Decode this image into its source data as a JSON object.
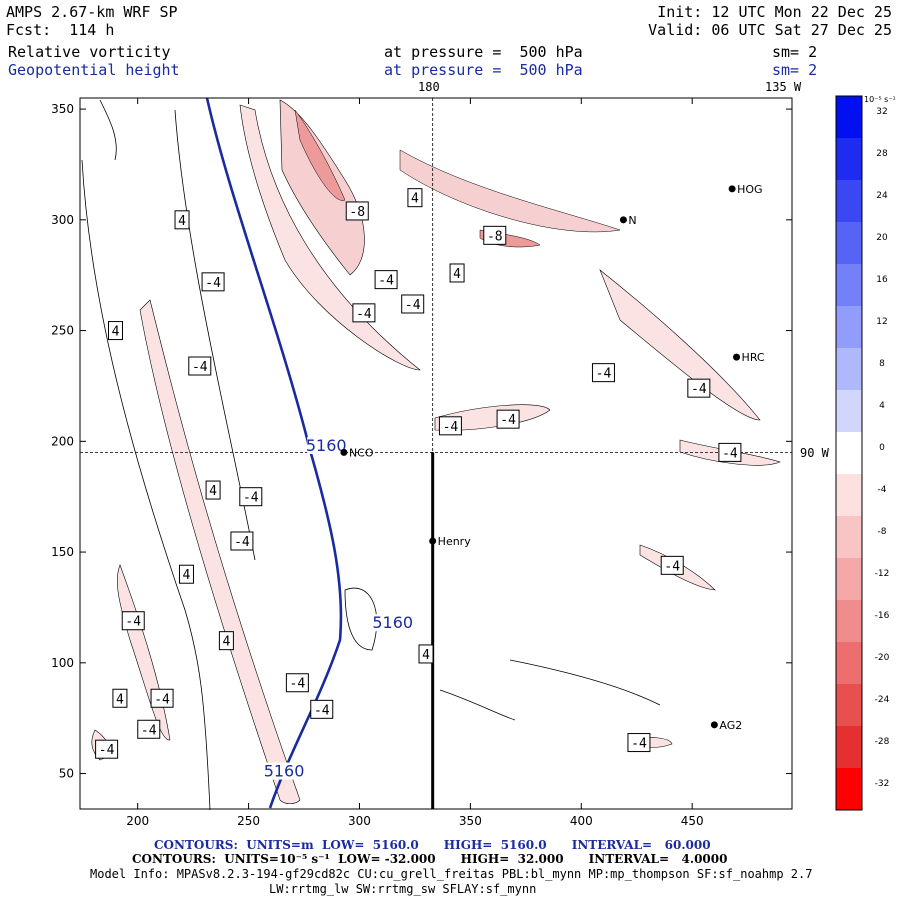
{
  "header": {
    "model_title": "AMPS 2.67-km WRF SP",
    "forecast": "Fcst:  114 h",
    "init": "Init: 12 UTC Mon 22 Dec 25",
    "valid": "Valid: 06 UTC Sat 27 Dec 25",
    "field1": "Relative vorticity",
    "field1_level": "at pressure =  500 hPa",
    "field1_sm": "sm= 2",
    "field2": "Geopotential height",
    "field2_level": "at pressure =  500 hPa",
    "field2_sm": "sm= 2"
  },
  "colors": {
    "height_contour": "#1a2aa0",
    "vorticity_fill_neg": "#f4c8c8",
    "vorticity_fill_neg_strong": "#ec9a9a"
  },
  "map": {
    "lon_labels": [
      "180",
      "135 W",
      "90 W"
    ],
    "stations": [
      {
        "name": "HOG",
        "x": 468,
        "y": 314
      },
      {
        "name": "N",
        "x": 419,
        "y": 300
      },
      {
        "name": "HRC",
        "x": 470,
        "y": 238
      },
      {
        "name": "NCO",
        "x": 293,
        "y": 195
      },
      {
        "name": "Henry",
        "x": 333,
        "y": 155
      },
      {
        "name": "AG2",
        "x": 460,
        "y": 72
      }
    ]
  },
  "chart_data": {
    "type": "contour",
    "title": "Relative vorticity / Geopotential height at 500 hPa",
    "x_ticks": [
      200,
      250,
      300,
      350,
      400,
      450
    ],
    "y_ticks": [
      50,
      100,
      150,
      200,
      250,
      300,
      350
    ],
    "xlim": [
      174,
      495
    ],
    "ylim": [
      34,
      355
    ],
    "crosshair": {
      "x": 333,
      "y": 195
    },
    "height_contour_labels": [
      {
        "text": "5160",
        "x": 285,
        "y": 197
      },
      {
        "text": "5160",
        "x": 315,
        "y": 117
      },
      {
        "text": "5160",
        "x": 266,
        "y": 50
      }
    ],
    "vorticity_labels": [
      {
        "text": "4",
        "x": 220,
        "y": 300
      },
      {
        "text": "-4",
        "x": 234,
        "y": 272
      },
      {
        "text": "4",
        "x": 190,
        "y": 250
      },
      {
        "text": "-4",
        "x": 228,
        "y": 234
      },
      {
        "text": "4",
        "x": 234,
        "y": 178
      },
      {
        "text": "-4",
        "x": 251,
        "y": 175
      },
      {
        "text": "-4",
        "x": 247,
        "y": 155
      },
      {
        "text": "4",
        "x": 222,
        "y": 140
      },
      {
        "text": "-4",
        "x": 198,
        "y": 119
      },
      {
        "text": "4",
        "x": 240,
        "y": 110
      },
      {
        "text": "-4",
        "x": 211,
        "y": 84
      },
      {
        "text": "4",
        "x": 192,
        "y": 84
      },
      {
        "text": "-4",
        "x": 205,
        "y": 70
      },
      {
        "text": "-4",
        "x": 186,
        "y": 61
      },
      {
        "text": "-4",
        "x": 272,
        "y": 91
      },
      {
        "text": "-4",
        "x": 283,
        "y": 79
      },
      {
        "text": "4",
        "x": 330,
        "y": 104
      },
      {
        "text": "-8",
        "x": 299,
        "y": 304
      },
      {
        "text": "4",
        "x": 325,
        "y": 310
      },
      {
        "text": "-4",
        "x": 312,
        "y": 273
      },
      {
        "text": "-4",
        "x": 302,
        "y": 258
      },
      {
        "text": "-4",
        "x": 324,
        "y": 262
      },
      {
        "text": "4",
        "x": 344,
        "y": 276
      },
      {
        "text": "-8",
        "x": 361,
        "y": 293
      },
      {
        "text": "-4",
        "x": 341,
        "y": 207
      },
      {
        "text": "-4",
        "x": 367,
        "y": 210
      },
      {
        "text": "-4",
        "x": 410,
        "y": 231
      },
      {
        "text": "-4",
        "x": 453,
        "y": 224
      },
      {
        "text": "-4",
        "x": 467,
        "y": 195
      },
      {
        "text": "-4",
        "x": 441,
        "y": 144
      },
      {
        "text": "-4",
        "x": 426,
        "y": 64
      }
    ],
    "colorbar": {
      "unit": "10⁻⁵ s⁻¹",
      "labels": [
        "32",
        "28",
        "24",
        "20",
        "16",
        "12",
        "8",
        "4",
        "0",
        "-4",
        "-8",
        "-12",
        "-16",
        "-20",
        "-24",
        "-28",
        "-32"
      ],
      "colors": [
        "#0010f0",
        "#1e2cf2",
        "#3a48f4",
        "#5664f6",
        "#7480f8",
        "#929cfa",
        "#b0b8fc",
        "#d2d6fe",
        "#ffffff",
        "#fde0e0",
        "#f8c4c4",
        "#f4a8a8",
        "#f08c8c",
        "#ec6e6e",
        "#e85050",
        "#e43030",
        "#ff0000"
      ]
    },
    "height_contours": {
      "units": "m",
      "low": "5160.0",
      "high": "5160.0",
      "interval": "60.000"
    },
    "vorticity_contours": {
      "units": "10⁻⁵ s⁻¹",
      "low": "-32.000",
      "high": "32.000",
      "interval": "4.0000"
    }
  },
  "footer": {
    "contours1": "CONTOURS:  UNITS=m  LOW=  5160.0      HIGH=  5160.0      INTERVAL=   60.000",
    "contours2": "CONTOURS:  UNITS=10⁻⁵ s⁻¹  LOW= -32.000      HIGH=  32.000      INTERVAL=   4.0000",
    "model_info": "Model Info: MPASv8.2.3-194-gf29cd82c CU:cu_grell_freitas PBL:bl_mynn MP:mp_thompson SF:sf_noahmp 2.7",
    "model_info2": "LW:rrtmg_lw SW:rrtmg_sw SFLAY:sf_mynn"
  }
}
